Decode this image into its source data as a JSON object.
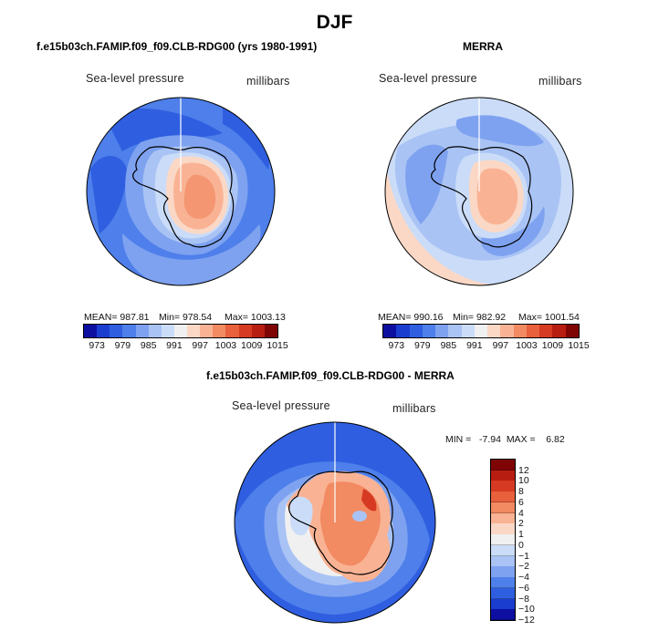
{
  "title": "DJF",
  "panels": {
    "model": {
      "case_title": "f.e15b03ch.FAMIP.f09_f09.CLB-RDG00 (yrs 1980-1991)",
      "left_label": "Sea-level pressure",
      "right_label": "millibars",
      "mean_text": "MEAN= 987.81",
      "min_text": "Min= 978.54",
      "max_text": "Max= 1003.13"
    },
    "obs": {
      "case_title": "MERRA",
      "left_label": "Sea-level pressure",
      "right_label": "millibars",
      "mean_text": "MEAN= 990.16",
      "min_text": "Min= 982.92",
      "max_text": "Max= 1001.54"
    },
    "diff": {
      "case_title": "f.e15b03ch.FAMIP.f09_f09.CLB-RDG00 - MERRA",
      "left_label": "Sea-level pressure",
      "right_label": "millibars",
      "minmax_text": "MIN =   -7.94  MAX =    6.82"
    }
  },
  "chart_data": [
    {
      "type": "heatmap",
      "name": "model",
      "title": "f.e15b03ch.FAMIP.f09_f09.CLB-RDG00 (yrs 1980-1991)",
      "variable": "Sea-level pressure",
      "units": "millibars",
      "stats": {
        "mean": 987.81,
        "min": 978.54,
        "max": 1003.13
      },
      "colorbar_levels": [
        973,
        976,
        979,
        982,
        985,
        988,
        991,
        994,
        997,
        1000,
        1003,
        1006,
        1009,
        1012,
        1015
      ],
      "colorbar_tick_labels": [
        "973",
        "979",
        "985",
        "991",
        "997",
        "1003",
        "1009",
        "1015"
      ]
    },
    {
      "type": "heatmap",
      "name": "obs",
      "title": "MERRA",
      "variable": "Sea-level pressure",
      "units": "millibars",
      "stats": {
        "mean": 990.16,
        "min": 982.92,
        "max": 1001.54
      },
      "colorbar_levels": [
        973,
        976,
        979,
        982,
        985,
        988,
        991,
        994,
        997,
        1000,
        1003,
        1006,
        1009,
        1012,
        1015
      ],
      "colorbar_tick_labels": [
        "973",
        "979",
        "985",
        "991",
        "997",
        "1003",
        "1009",
        "1015"
      ]
    },
    {
      "type": "heatmap",
      "name": "diff",
      "title": "f.e15b03ch.FAMIP.f09_f09.CLB-RDG00 - MERRA",
      "variable": "Sea-level pressure",
      "units": "millibars",
      "stats": {
        "min": -7.94,
        "max": 6.82
      },
      "colorbar_levels": [
        12,
        10,
        8,
        6,
        4,
        2,
        1,
        0,
        -1,
        -2,
        -4,
        -6,
        -8,
        -10,
        -12
      ],
      "colorbar_tick_labels": [
        "12",
        "10",
        "8",
        "6",
        "4",
        "2",
        "1",
        "0",
        "−1",
        "−2",
        "−4",
        "−6",
        "−8",
        "−10",
        "−12"
      ]
    }
  ],
  "colors": {
    "abs_colorbar": [
      "#0d0fa0",
      "#1a3dd0",
      "#2f5fe0",
      "#4e7fea",
      "#7ea2f0",
      "#a9c3f4",
      "#cadcf8",
      "#f0f0f0",
      "#fbd8c6",
      "#f9b394",
      "#f28a62",
      "#e8603c",
      "#d63a22",
      "#b81d12",
      "#7f0505"
    ],
    "diff_colorbar": [
      "#7f0505",
      "#b81d12",
      "#d63a22",
      "#e8603c",
      "#f28a62",
      "#f9b394",
      "#fbd8c6",
      "#f0f0f0",
      "#cadcf8",
      "#a9c3f4",
      "#7ea2f0",
      "#4e7fea",
      "#2f5fe0",
      "#1a3dd0",
      "#0d0fa0"
    ]
  }
}
